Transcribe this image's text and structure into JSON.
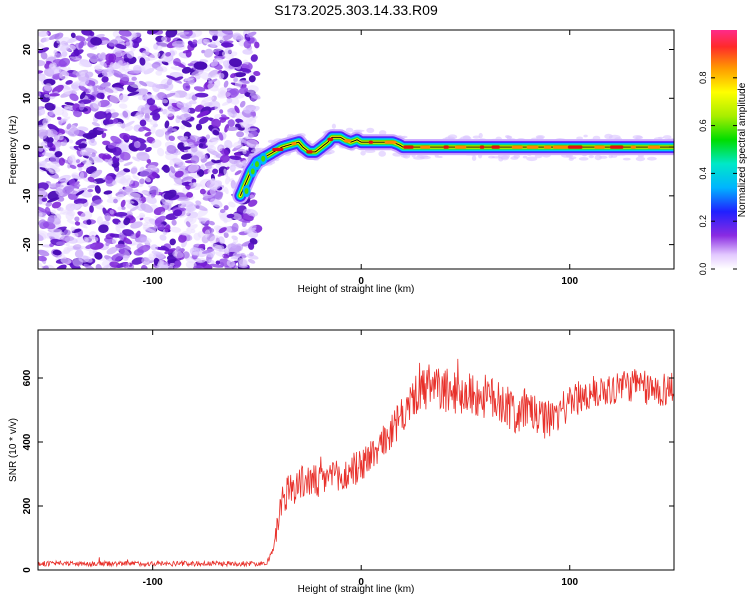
{
  "figure_title": "S173.2025.303.14.33.R09",
  "colors": {
    "snr_line": "#e8302a",
    "ridge_core": "#d40000",
    "axis": "#000000",
    "noise_purple": "#7a1fd6"
  },
  "chart_data": [
    {
      "id": "spectrogram",
      "type": "heatmap",
      "title": "S173.2025.303.14.33.R09",
      "xlabel": "Height of straight line (km)",
      "ylabel": "Frequency (Hz)",
      "xlim": [
        -155,
        150
      ],
      "ylim": [
        -25,
        24
      ],
      "xticks": [
        -100,
        0,
        100
      ],
      "xtick_labels": [
        "-100",
        "0",
        "100"
      ],
      "yticks": [
        -20,
        -10,
        0,
        10,
        20
      ],
      "ytick_labels": [
        "-20",
        "-10",
        "0",
        "10",
        "20"
      ],
      "noise_region_x": [
        -155,
        -52
      ],
      "ridge": {
        "x": [
          -58,
          -56,
          -53,
          -50,
          -46,
          -42,
          -38,
          -34,
          -30,
          -28,
          -25,
          -22,
          -19,
          -16,
          -14,
          -12,
          -10,
          -8,
          -5,
          -2,
          0,
          5,
          10,
          15,
          18,
          20,
          25,
          40,
          60,
          80,
          100,
          120,
          140,
          150
        ],
        "y": [
          -10,
          -8,
          -5,
          -3,
          -2,
          -1,
          0,
          0.5,
          1,
          0,
          -1,
          -1,
          0,
          1,
          2,
          2,
          2,
          1.5,
          1,
          1.5,
          1,
          1,
          1,
          1,
          0.5,
          0,
          0,
          0,
          0,
          0,
          0,
          0,
          0,
          0
        ]
      },
      "colorbar": {
        "label": "Normalized spectral amplitude",
        "range": [
          0,
          1
        ],
        "ticks": [
          0.0,
          0.2,
          0.4,
          0.6,
          0.8
        ],
        "tick_labels": [
          "0.0",
          "0.2",
          "0.4",
          "0.6",
          "0.8"
        ]
      }
    },
    {
      "id": "snr",
      "type": "line",
      "xlabel": "Height of straight line (km)",
      "ylabel": "SNR (10 * v/v)",
      "xlim": [
        -155,
        150
      ],
      "ylim": [
        0,
        750
      ],
      "xticks": [
        -100,
        0,
        100
      ],
      "xtick_labels": [
        "-100",
        "0",
        "100"
      ],
      "yticks": [
        0,
        200,
        400,
        600
      ],
      "ytick_labels": [
        "0",
        "200",
        "400",
        "600"
      ],
      "series": [
        {
          "name": "SNR",
          "x": [
            -155,
            -140,
            -120,
            -100,
            -80,
            -60,
            -50,
            -45,
            -42,
            -40,
            -38,
            -35,
            -30,
            -25,
            -20,
            -15,
            -10,
            -5,
            0,
            5,
            10,
            15,
            20,
            25,
            30,
            35,
            40,
            50,
            60,
            70,
            75,
            80,
            85,
            90,
            95,
            100,
            110,
            120,
            130,
            140,
            150
          ],
          "values": [
            20,
            20,
            20,
            20,
            20,
            20,
            20,
            25,
            60,
            150,
            220,
            250,
            270,
            280,
            270,
            300,
            280,
            310,
            330,
            360,
            390,
            440,
            480,
            540,
            560,
            570,
            560,
            550,
            540,
            520,
            480,
            510,
            470,
            470,
            490,
            530,
            550,
            570,
            580,
            560,
            570
          ],
          "noise_amplitude": [
            8,
            8,
            8,
            8,
            8,
            8,
            8,
            10,
            20,
            40,
            55,
            55,
            55,
            55,
            55,
            55,
            55,
            55,
            55,
            55,
            55,
            60,
            60,
            60,
            70,
            70,
            70,
            70,
            70,
            70,
            70,
            60,
            60,
            60,
            60,
            55,
            55,
            55,
            55,
            55,
            55
          ]
        }
      ]
    }
  ]
}
